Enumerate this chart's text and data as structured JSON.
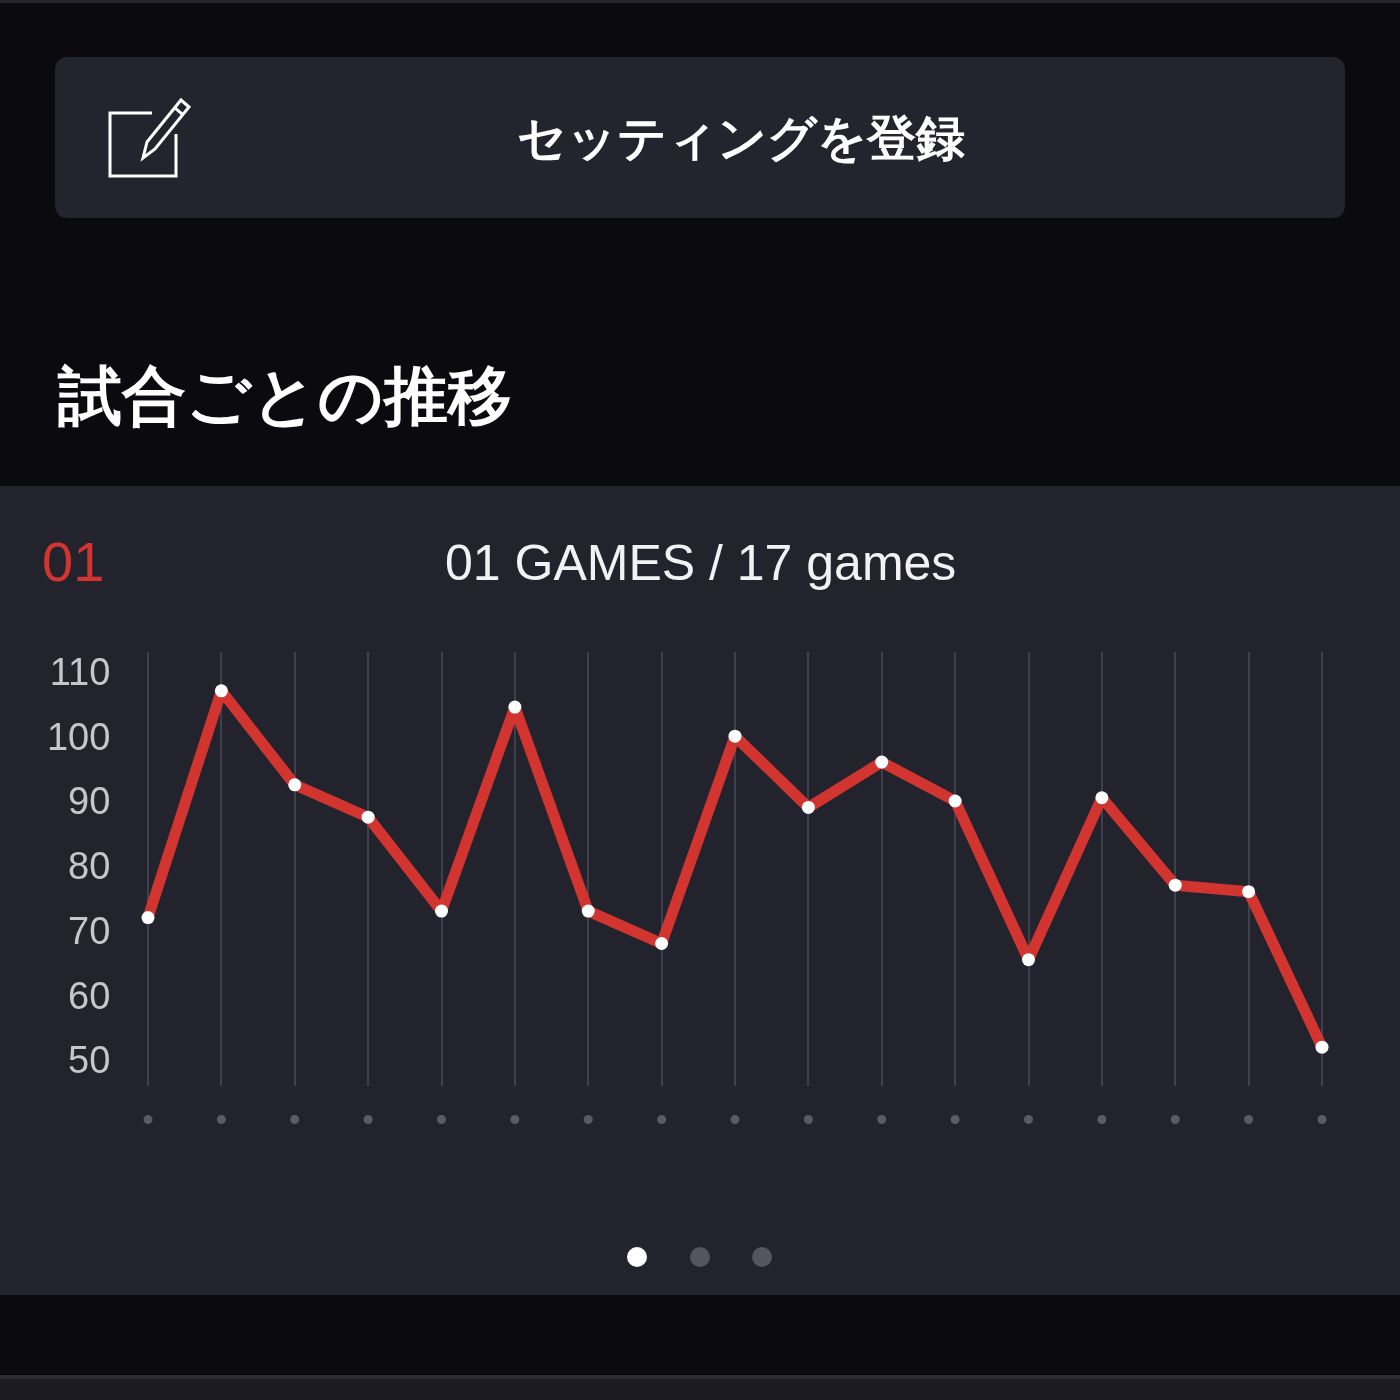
{
  "chart_data": {
    "type": "line",
    "title": "試合ごとの推移",
    "subtitle": "01 GAMES / 17 games",
    "annotations": [
      "セッティングを登録",
      "01"
    ],
    "categories": [
      null,
      null,
      null,
      null,
      null,
      null,
      null,
      null,
      null,
      null,
      null,
      null,
      null,
      null,
      null,
      null,
      null
    ],
    "series": [
      {
        "color": "#d2352f",
        "values": [
          72,
          107,
          92.5,
          87.5,
          73,
          104.5,
          73,
          68,
          100,
          89,
          96,
          90,
          65.5,
          90.5,
          77,
          76,
          52
        ]
      }
    ],
    "ylim": [
      46,
      113
    ],
    "yticks": [
      50,
      60,
      70,
      80,
      90,
      100,
      110
    ],
    "grid": "x",
    "tick_labels": "y",
    "marker": "circle",
    "line_style": "solid"
  }
}
